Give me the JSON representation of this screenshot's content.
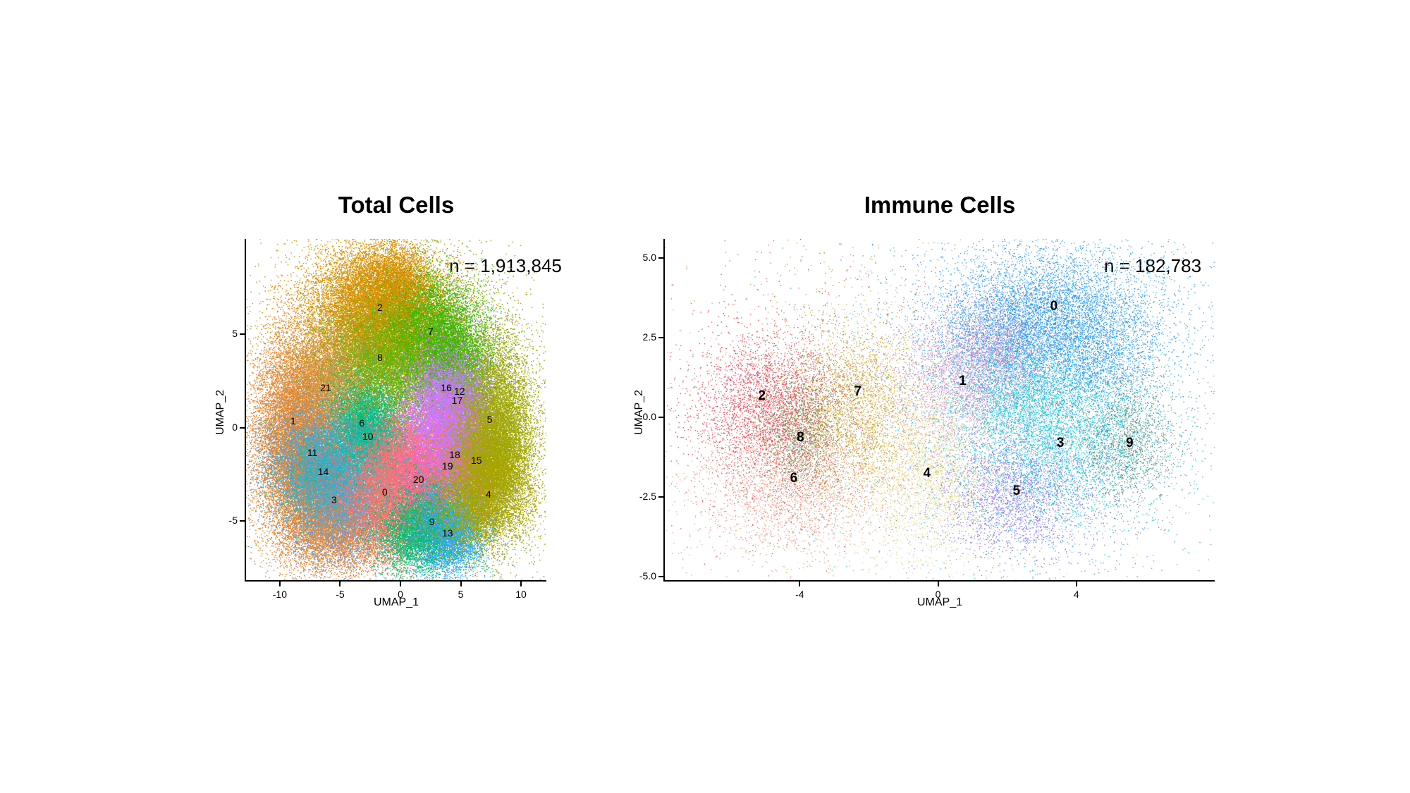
{
  "figure": {
    "background": "#ffffff",
    "panel_count": 2
  },
  "chart_data": [
    {
      "type": "scatter",
      "subtype": "umap-cluster-plot",
      "title": "Total Cells",
      "annotation": "n = 1,913,845",
      "xlabel": "UMAP_1",
      "ylabel": "UMAP_2",
      "xlim": [
        -12.8,
        12.1
      ],
      "ylim": [
        -8.16,
        10.1
      ],
      "xticks": {
        "values": [
          -10,
          -5,
          0,
          5,
          10
        ],
        "labels": [
          "-10",
          "-5",
          "0",
          "5",
          "10"
        ]
      },
      "yticks": {
        "values": [
          5,
          0,
          -5
        ],
        "labels": [
          "5",
          "0",
          "-5"
        ]
      },
      "grid": false,
      "legend": "none",
      "style": {
        "point_size": 1.5,
        "alpha": 0.9,
        "tail_frac": 0.06,
        "tail_mult": 1.8,
        "label_font_px": 14,
        "label_font_weight": "500",
        "seed": 101
      },
      "clusters": [
        {
          "id": "2",
          "color": "#D89000",
          "label_pos": [
            -1.7,
            6.4
          ],
          "blobs": [
            [
              -2.0,
              6.3,
              3.0,
              1.7,
              14000
            ],
            [
              -0.5,
              7.7,
              1.6,
              1.0,
              3000
            ]
          ]
        },
        {
          "id": "7",
          "color": "#39B600",
          "label_pos": [
            2.5,
            5.1
          ],
          "blobs": [
            [
              2.4,
              4.9,
              2.3,
              1.6,
              9000
            ],
            [
              4.4,
              3.5,
              1.4,
              1.2,
              2800
            ]
          ]
        },
        {
          "id": "8",
          "color": "#74B000",
          "label_pos": [
            -1.7,
            3.7
          ],
          "blobs": [
            [
              -1.6,
              3.6,
              2.4,
              1.6,
              9000
            ]
          ]
        },
        {
          "id": "21",
          "color": "#CE9642",
          "label_pos": [
            -6.2,
            2.1
          ],
          "blobs": [
            [
              -6.2,
              2.3,
              1.9,
              1.5,
              6500
            ]
          ]
        },
        {
          "id": "1",
          "color": "#E98428",
          "label_pos": [
            -8.9,
            0.3
          ],
          "blobs": [
            [
              -8.8,
              0.3,
              1.8,
              2.3,
              8500
            ],
            [
              -7.2,
              -3.6,
              2.0,
              1.8,
              6000
            ],
            [
              -4.5,
              -5.4,
              2.6,
              1.2,
              4000
            ]
          ]
        },
        {
          "id": "6",
          "color": "#00BA72",
          "label_pos": [
            -3.2,
            0.2
          ],
          "blobs": [
            [
              -3.1,
              0.2,
              1.5,
              1.3,
              4500
            ]
          ]
        },
        {
          "id": "10",
          "color": "#00C1A7",
          "label_pos": [
            -2.7,
            -0.5
          ],
          "blobs": [
            [
              -2.6,
              -0.8,
              1.5,
              1.2,
              4200
            ]
          ]
        },
        {
          "id": "11",
          "color": "#7098C5",
          "label_pos": [
            -7.3,
            -1.4
          ],
          "blobs": [
            [
              -7.2,
              -1.4,
              1.9,
              1.4,
              6200
            ]
          ]
        },
        {
          "id": "14",
          "color": "#00BFC4",
          "label_pos": [
            -6.4,
            -2.4
          ],
          "blobs": [
            [
              -6.3,
              -2.5,
              1.8,
              1.2,
              5000
            ]
          ]
        },
        {
          "id": "3",
          "color": "#6C9BD2",
          "label_pos": [
            -5.5,
            -3.9
          ],
          "blobs": [
            [
              -5.0,
              -3.9,
              2.1,
              1.5,
              6800
            ]
          ]
        },
        {
          "id": "0",
          "color": "#F8766D",
          "label_pos": [
            -1.3,
            -3.5
          ],
          "blobs": [
            [
              -1.4,
              -3.3,
              1.9,
              1.6,
              9000
            ],
            [
              0.2,
              -1.3,
              1.5,
              1.3,
              3500
            ]
          ]
        },
        {
          "id": "20",
          "color": "#FF63A8",
          "label_pos": [
            1.5,
            -2.8
          ],
          "blobs": [
            [
              1.6,
              -2.6,
              1.5,
              1.2,
              4200
            ]
          ]
        },
        {
          "id": "9",
          "color": "#00BE67",
          "label_pos": [
            2.6,
            -5.1
          ],
          "blobs": [
            [
              2.4,
              -4.9,
              1.9,
              1.3,
              5500
            ],
            [
              0.8,
              -5.7,
              1.4,
              0.9,
              2000
            ]
          ]
        },
        {
          "id": "13",
          "color": "#30A4FF",
          "label_pos": [
            3.9,
            -5.7
          ],
          "blobs": [
            [
              3.9,
              -5.5,
              1.6,
              1.1,
              4500
            ]
          ]
        },
        {
          "id": "16",
          "color": "#C77CFF",
          "label_pos": [
            3.8,
            2.1
          ],
          "blobs": [
            [
              3.6,
              1.9,
              1.5,
              1.3,
              3600
            ],
            [
              2.6,
              0.9,
              1.3,
              1.1,
              2200
            ]
          ]
        },
        {
          "id": "12",
          "color": "#A58AFF",
          "label_pos": [
            4.9,
            1.9
          ],
          "blobs": [
            [
              4.9,
              1.7,
              1.2,
              1.0,
              2700
            ]
          ]
        },
        {
          "id": "17",
          "color": "#E76BF3",
          "label_pos": [
            4.7,
            1.4
          ],
          "blobs": [
            [
              4.6,
              0.6,
              1.4,
              1.2,
              3100
            ],
            [
              3.1,
              -0.3,
              1.2,
              1.0,
              2000
            ]
          ]
        },
        {
          "id": "18",
          "color": "#9590FF",
          "label_pos": [
            4.5,
            -1.5
          ],
          "blobs": [
            [
              4.5,
              -1.3,
              1.3,
              1.0,
              2700
            ]
          ]
        },
        {
          "id": "19",
          "color": "#FF61C7",
          "label_pos": [
            3.9,
            -2.1
          ],
          "blobs": [
            [
              4.0,
              -2.0,
              1.3,
              1.0,
              2700
            ]
          ]
        },
        {
          "id": "15",
          "color": "#B0A100",
          "label_pos": [
            6.3,
            -1.8
          ],
          "blobs": [
            [
              6.3,
              -1.7,
              1.5,
              1.2,
              3600
            ]
          ]
        },
        {
          "id": "5",
          "color": "#9CA700",
          "label_pos": [
            7.4,
            0.4
          ],
          "blobs": [
            [
              7.5,
              0.6,
              1.7,
              2.2,
              9000
            ],
            [
              8.2,
              -1.4,
              1.3,
              1.5,
              2800
            ]
          ]
        },
        {
          "id": "4",
          "color": "#ABA300",
          "label_pos": [
            7.3,
            -3.6
          ],
          "blobs": [
            [
              7.0,
              -3.3,
              1.9,
              1.5,
              6800
            ],
            [
              5.4,
              -4.4,
              1.5,
              1.0,
              2200
            ]
          ]
        }
      ]
    },
    {
      "type": "scatter",
      "subtype": "umap-cluster-plot",
      "title": "Immune Cells",
      "annotation": "n = 182,783",
      "xlabel": "UMAP_1",
      "ylabel": "UMAP_2",
      "xlim": [
        -7.9,
        8.0
      ],
      "ylim": [
        -5.1,
        5.6
      ],
      "xticks": {
        "values": [
          -4,
          0,
          4
        ],
        "labels": [
          "-4",
          "0",
          "4"
        ]
      },
      "yticks": {
        "values": [
          5.0,
          2.5,
          0.0,
          -2.5,
          -5.0
        ],
        "labels": [
          "5.0",
          "2.5",
          "0.0",
          "-2.5",
          "-5.0"
        ]
      },
      "grid": false,
      "legend": "none",
      "style": {
        "point_size": 1.4,
        "alpha": 0.8,
        "tail_frac": 0.14,
        "tail_mult": 2.4,
        "label_font_px": 19,
        "label_font_weight": "700",
        "seed": 202
      },
      "clusters": [
        {
          "id": "0",
          "color": "#2396EC",
          "label_pos": [
            3.35,
            3.45
          ],
          "blobs": [
            [
              3.2,
              3.2,
              1.6,
              1.1,
              6500
            ],
            [
              1.9,
              2.1,
              0.9,
              0.9,
              1800
            ],
            [
              4.6,
              1.9,
              0.9,
              1.0,
              1800
            ]
          ]
        },
        {
          "id": "1",
          "color": "#CD96CE",
          "label_pos": [
            0.71,
            1.11
          ],
          "blobs": [
            [
              0.8,
              1.2,
              1.1,
              1.1,
              3200
            ],
            [
              1.6,
              2.4,
              0.8,
              0.7,
              1100
            ]
          ]
        },
        {
          "id": "2",
          "color": "#E13F4F",
          "label_pos": [
            -5.09,
            0.63
          ],
          "blobs": [
            [
              -4.9,
              0.4,
              1.05,
              1.15,
              3600
            ]
          ]
        },
        {
          "id": "3",
          "color": "#16C8D8",
          "label_pos": [
            3.54,
            -0.85
          ],
          "blobs": [
            [
              3.4,
              -0.6,
              1.5,
              1.4,
              5200
            ],
            [
              2.4,
              0.6,
              0.9,
              0.9,
              1400
            ]
          ]
        },
        {
          "id": "4",
          "color": "#E3DA8C",
          "label_pos": [
            -0.32,
            -1.79
          ],
          "blobs": [
            [
              -0.3,
              -1.7,
              1.0,
              1.3,
              3000
            ]
          ]
        },
        {
          "id": "5",
          "color": "#8A70E8",
          "label_pos": [
            2.27,
            -2.34
          ],
          "blobs": [
            [
              2.2,
              -2.4,
              1.1,
              1.0,
              2600
            ]
          ]
        },
        {
          "id": "6",
          "color": "#EC9A88",
          "label_pos": [
            -4.17,
            -1.94
          ],
          "blobs": [
            [
              -4.3,
              -2.0,
              1.2,
              1.1,
              2900
            ]
          ]
        },
        {
          "id": "7",
          "color": "#C9A227",
          "label_pos": [
            -2.32,
            0.77
          ],
          "blobs": [
            [
              -2.4,
              0.4,
              0.95,
              1.3,
              3100
            ]
          ]
        },
        {
          "id": "8",
          "color": "#69854C",
          "label_pos": [
            -3.98,
            -0.66
          ],
          "blobs": [
            [
              -3.9,
              -0.5,
              0.55,
              1.0,
              1500
            ]
          ]
        },
        {
          "id": "9",
          "color": "#578878",
          "label_pos": [
            5.54,
            -0.85
          ],
          "blobs": [
            [
              5.4,
              -0.8,
              0.75,
              0.95,
              1600
            ]
          ]
        }
      ]
    }
  ]
}
